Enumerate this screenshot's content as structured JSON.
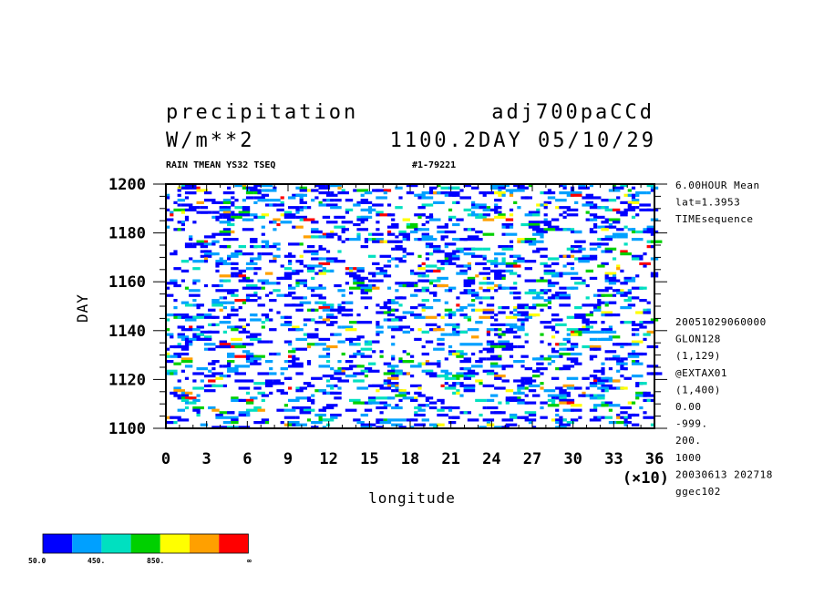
{
  "header": {
    "title_left": "precipitation",
    "title_right": "adj700paCCd",
    "units": "W/m**2",
    "time_info": "1100.2DAY 05/10/29",
    "subtitle_left": "RAIN TMEAN YS32 TSEQ",
    "subtitle_right": "#1-79221"
  },
  "side_info_top": [
    "6.00HOUR Mean",
    "lat=1.3953",
    "TIMEsequence"
  ],
  "side_info_bottom": [
    "20051029060000",
    "GLON128",
    "(1,129)",
    "@EXTAX01",
    "(1,400)",
    "0.00",
    "-999.",
    "200.",
    "1000",
    "20030613 202718",
    "ggec102"
  ],
  "chart_data": {
    "type": "heatmap",
    "title": "precipitation",
    "xlabel": "longitude",
    "xscale_note": "(×10)",
    "ylabel": "DAY",
    "xlim": [
      0,
      36
    ],
    "ylim": [
      1100,
      1200
    ],
    "x_ticks": [
      "0",
      "3",
      "6",
      "9",
      "12",
      "15",
      "18",
      "21",
      "24",
      "27",
      "30",
      "33",
      "36"
    ],
    "y_ticks": [
      "1100",
      "1120",
      "1140",
      "1160",
      "1180",
      "1200"
    ],
    "colors": [
      "#0000ff",
      "#00a0ff",
      "#00e0c0",
      "#00d000",
      "#ffff00",
      "#ffa000",
      "#ff0000"
    ],
    "colorbar_labels": [
      "50.0",
      "450.",
      "850.",
      "∞"
    ]
  }
}
